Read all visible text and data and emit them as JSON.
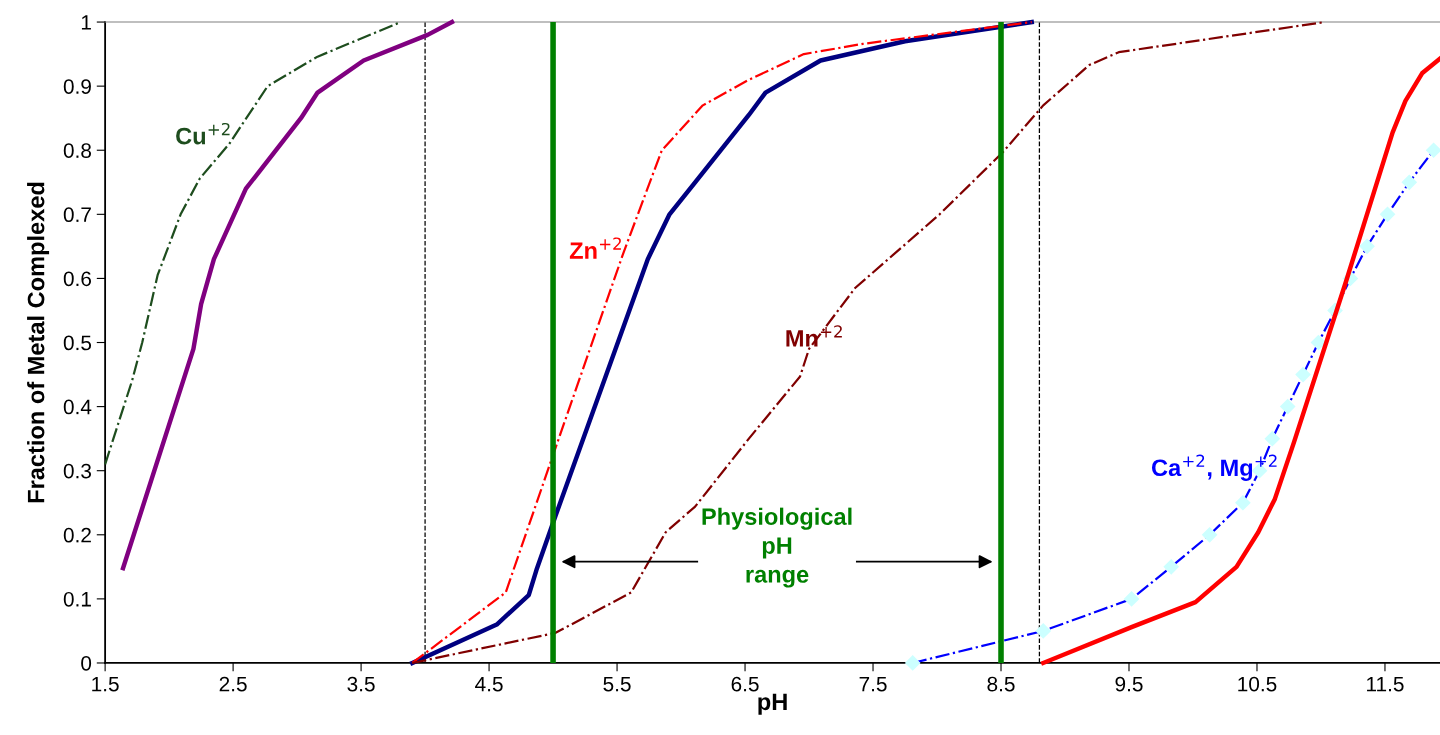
{
  "chart_data": {
    "type": "line",
    "xlabel": "pH",
    "ylabel": "Fraction of Metal Complexed",
    "xlim": [
      1.5,
      11.93
    ],
    "xticks": [
      1.5,
      2.5,
      3.5,
      4.5,
      5.5,
      6.5,
      7.5,
      8.5,
      9.5,
      10.5,
      11.5
    ],
    "ylim": [
      0,
      1
    ],
    "yticks": [
      0,
      0.1,
      0.2,
      0.3,
      0.4,
      0.5,
      0.6,
      0.7,
      0.8,
      0.9,
      1
    ],
    "grid": false,
    "legend": false,
    "series": [
      {
        "name": "Cu$^{+2}$",
        "color": "#1e4d1e",
        "line_style": "dashdot",
        "marker": "none",
        "x": [
          1.5,
          1.71,
          1.79,
          1.91,
          2.09,
          2.24,
          2.47,
          2.77,
          3.16,
          3.81
        ],
        "values": [
          0.31,
          0.44,
          0.5,
          0.605,
          0.7,
          0.756,
          0.81,
          0.9,
          0.946,
          1.0
        ]
      },
      {
        "color": "#800080",
        "line_style": "solid",
        "marker": "none",
        "x": [
          1.64,
          2.19,
          2.25,
          2.35,
          2.6,
          3.03,
          3.16,
          3.52,
          4.02,
          4.21
        ],
        "values": [
          0.148,
          0.49,
          0.56,
          0.63,
          0.74,
          0.85,
          0.89,
          0.94,
          0.98,
          1.0
        ]
      },
      {
        "color": "#000080",
        "line_style": "solid",
        "marker": "none",
        "x": [
          3.9,
          4.56,
          4.81,
          4.87,
          5.02,
          5.74,
          5.91,
          6.11,
          6.53,
          6.66,
          7.09,
          7.75,
          8.74
        ],
        "values": [
          0,
          0.06,
          0.106,
          0.145,
          0.23,
          0.63,
          0.7,
          0.75,
          0.855,
          0.89,
          0.94,
          0.97,
          1.0
        ]
      },
      {
        "name": "Zn$^{+2}$",
        "color": "#ff0000",
        "line_style": "dashdot",
        "marker": "none",
        "x": [
          3.9,
          4.63,
          5.02,
          5.55,
          5.85,
          6.17,
          6.53,
          6.96,
          7.42,
          8.74
        ],
        "values": [
          0,
          0.11,
          0.336,
          0.64,
          0.8,
          0.87,
          0.91,
          0.95,
          0.966,
          1.0
        ]
      },
      {
        "name": "Mn$^{+2}$",
        "color": "#800000",
        "line_style": "dashdot",
        "marker": "none",
        "x": [
          3.9,
          5.02,
          5.61,
          5.88,
          6.11,
          6.53,
          6.93,
          7.0,
          7.36,
          8.02,
          8.51,
          8.83,
          9.19,
          9.42,
          11.03
        ],
        "values": [
          0,
          0.047,
          0.11,
          0.204,
          0.244,
          0.35,
          0.447,
          0.49,
          0.585,
          0.7,
          0.796,
          0.87,
          0.933,
          0.953,
          1.0
        ]
      },
      {
        "name": "Ca$^{+2}$, Mg$^{+2}$",
        "color": "#0000ff",
        "line_style": "dashdot",
        "marker": "diamond",
        "x": [
          7.81,
          8.83,
          9.52,
          9.83,
          10.13,
          10.39,
          10.52,
          10.62,
          10.74,
          10.86,
          10.98,
          11.11,
          11.23,
          11.36,
          11.52,
          11.69,
          11.88
        ],
        "values": [
          0,
          0.05,
          0.1,
          0.15,
          0.2,
          0.25,
          0.3,
          0.35,
          0.4,
          0.45,
          0.5,
          0.55,
          0.6,
          0.65,
          0.7,
          0.75,
          0.8
        ]
      },
      {
        "color": "#ff0000",
        "line_style": "solid",
        "marker": "none",
        "x": [
          8.83,
          9.52,
          10.02,
          10.34,
          10.51,
          10.64,
          10.79,
          11.2,
          11.56,
          11.66,
          11.79,
          11.93
        ],
        "values": [
          0,
          0.056,
          0.095,
          0.15,
          0.204,
          0.256,
          0.345,
          0.598,
          0.828,
          0.877,
          0.92,
          0.943
        ]
      }
    ],
    "ref_lines": [
      {
        "axis": "x",
        "value": 4.0,
        "color": "#000000",
        "line_style": "dashed"
      },
      {
        "axis": "x",
        "value": 8.8,
        "color": "#000000",
        "line_style": "dashed"
      },
      {
        "axis": "x",
        "value": 5.0,
        "color": "#008000",
        "line_style": "solid"
      },
      {
        "axis": "x",
        "value": 8.5,
        "color": "#008000",
        "line_style": "solid"
      }
    ],
    "annotations": [
      "Physiological\npH\nrange"
    ]
  }
}
